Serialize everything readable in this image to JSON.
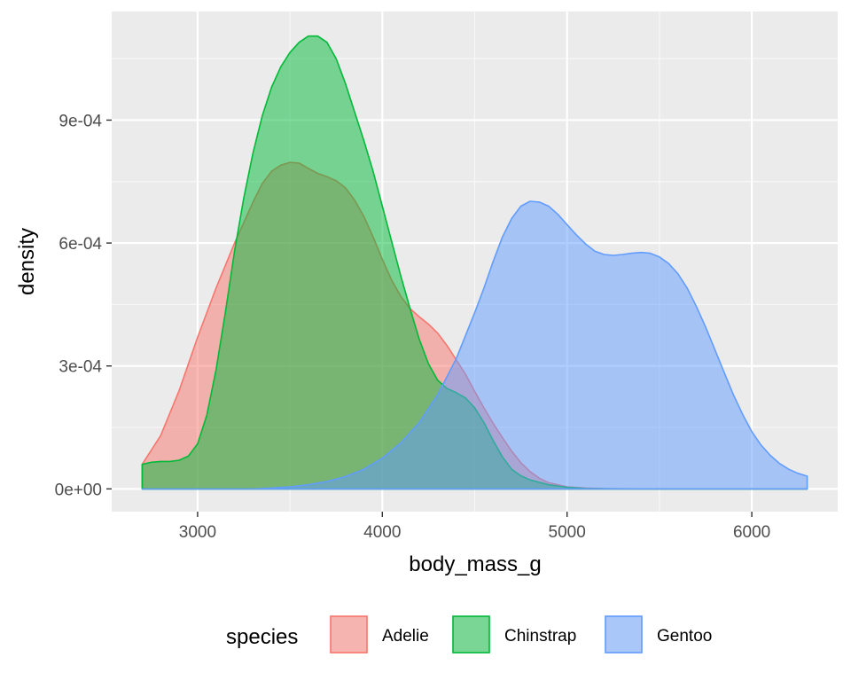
{
  "chart_data": {
    "type": "area",
    "xlabel": "body_mass_g",
    "ylabel": "density",
    "xlim": [
      2535,
      6465
    ],
    "ylim": [
      -5.55e-05,
      0.001165
    ],
    "x_ticks": [
      3000,
      4000,
      5000,
      6000
    ],
    "x_tick_labels": [
      "3000",
      "4000",
      "5000",
      "6000"
    ],
    "y_ticks": [
      0,
      0.0003,
      0.0006,
      0.0009
    ],
    "y_tick_labels": [
      "0e+00",
      "3e-04",
      "6e-04",
      "9e-04"
    ],
    "grid": true,
    "legend": {
      "title": "species",
      "position": "bottom"
    },
    "fill_opacity": 0.5,
    "series": [
      {
        "name": "Adelie",
        "fill": "#F8766D",
        "stroke": "#F8766D",
        "x": [
          2700,
          2800,
          2900,
          3000,
          3100,
          3200,
          3300,
          3350,
          3400,
          3450,
          3500,
          3550,
          3600,
          3650,
          3700,
          3750,
          3800,
          3850,
          3900,
          3950,
          4000,
          4050,
          4100,
          4150,
          4200,
          4250,
          4300,
          4350,
          4400,
          4450,
          4500,
          4550,
          4600,
          4650,
          4700,
          4750,
          4800,
          4850,
          4900,
          5000,
          5100,
          5200,
          5400,
          5600,
          5800,
          6000,
          6300
        ],
        "y": [
          6e-05,
          0.00013,
          0.00024,
          0.00037,
          0.00049,
          0.0006,
          0.0007,
          0.000745,
          0.000775,
          0.00079,
          0.000797,
          0.000795,
          0.000782,
          0.00077,
          0.000762,
          0.000752,
          0.000735,
          0.000705,
          0.000665,
          0.000615,
          0.00056,
          0.00051,
          0.00047,
          0.00044,
          0.00042,
          0.000402,
          0.00038,
          0.00035,
          0.000315,
          0.00028,
          0.000238,
          0.000198,
          0.00016,
          0.000125,
          9.2e-05,
          6.4e-05,
          4.2e-05,
          2.6e-05,
          1.5e-05,
          5e-06,
          2e-06,
          5e-07,
          0,
          0,
          0,
          0,
          0
        ]
      },
      {
        "name": "Chinstrap",
        "fill": "#00BA38",
        "stroke": "#00BA38",
        "x": [
          2700,
          2750,
          2800,
          2850,
          2900,
          2950,
          3000,
          3050,
          3100,
          3150,
          3200,
          3250,
          3300,
          3350,
          3400,
          3450,
          3500,
          3550,
          3600,
          3650,
          3700,
          3750,
          3800,
          3850,
          3900,
          3950,
          4000,
          4050,
          4100,
          4150,
          4200,
          4250,
          4300,
          4350,
          4400,
          4450,
          4500,
          4550,
          4600,
          4650,
          4700,
          4750,
          4800,
          4900,
          5000,
          5100,
          5200,
          5400,
          5600,
          5800,
          6000,
          6300
        ],
        "y": [
          6e-05,
          6.5e-05,
          6.7e-05,
          6.7e-05,
          7e-05,
          8e-05,
          0.00011,
          0.00018,
          0.00029,
          0.00043,
          0.00058,
          0.00071,
          0.00082,
          0.00091,
          0.00098,
          0.00103,
          0.001065,
          0.00109,
          0.001105,
          0.001105,
          0.00109,
          0.00105,
          0.00099,
          0.00092,
          0.00085,
          0.000775,
          0.00069,
          0.000605,
          0.00052,
          0.00044,
          0.000365,
          0.000305,
          0.000265,
          0.000245,
          0.000235,
          0.000222,
          0.000198,
          0.000162,
          0.000118,
          7.8e-05,
          4.8e-05,
          3.2e-05,
          2.2e-05,
          1e-05,
          4e-06,
          1e-06,
          3e-07,
          0,
          0,
          0,
          0,
          0
        ]
      },
      {
        "name": "Gentoo",
        "fill": "#619CFF",
        "stroke": "#619CFF",
        "x": [
          2700,
          3000,
          3300,
          3400,
          3500,
          3600,
          3700,
          3800,
          3900,
          4000,
          4100,
          4200,
          4300,
          4400,
          4500,
          4550,
          4600,
          4650,
          4700,
          4750,
          4800,
          4850,
          4900,
          4950,
          5000,
          5050,
          5100,
          5150,
          5200,
          5250,
          5300,
          5350,
          5400,
          5450,
          5500,
          5550,
          5600,
          5650,
          5700,
          5750,
          5800,
          5850,
          5900,
          5950,
          6000,
          6050,
          6100,
          6150,
          6200,
          6250,
          6300
        ],
        "y": [
          0,
          0,
          0,
          2e-06,
          5e-06,
          1e-05,
          1.8e-05,
          3e-05,
          4.8e-05,
          7.5e-05,
          0.000112,
          0.000162,
          0.00023,
          0.000318,
          0.00043,
          0.00049,
          0.000555,
          0.000615,
          0.00066,
          0.00069,
          0.000702,
          0.0007,
          0.00069,
          0.00067,
          0.000645,
          0.00062,
          0.000598,
          0.00058,
          0.000572,
          0.00057,
          0.000572,
          0.000575,
          0.000577,
          0.000575,
          0.000566,
          0.00055,
          0.000525,
          0.00049,
          0.000445,
          0.000395,
          0.00034,
          0.000285,
          0.00023,
          0.000182,
          0.00014,
          0.000107,
          8.2e-05,
          6.2e-05,
          4.8e-05,
          3.8e-05,
          3.1e-05
        ]
      }
    ]
  }
}
